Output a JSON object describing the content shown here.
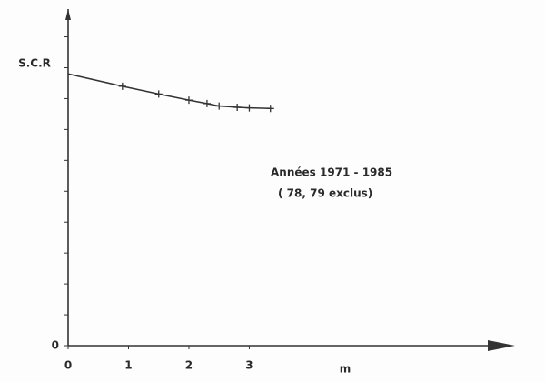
{
  "chart_data": {
    "type": "line",
    "y_label": "S.C.R",
    "x_label": "m",
    "annotations": [
      "Années 1971 - 1985",
      "( 78, 79 exclus)"
    ],
    "x": [
      0,
      0.9,
      1.5,
      2,
      2.3,
      2.5,
      2.8,
      3,
      3.35
    ],
    "series": [
      {
        "color": "#333333",
        "values": [
          8.8,
          8.4,
          8.15,
          7.95,
          7.84,
          7.76,
          7.72,
          7.7,
          7.68
        ]
      }
    ],
    "xlim": [
      0,
      7.4
    ],
    "xticks": [
      0,
      1,
      2,
      3
    ],
    "ylim": [
      0,
      10.9
    ],
    "yticks": [
      0
    ],
    "minor_yticks": [
      1,
      2,
      3,
      4,
      5,
      6,
      7,
      8,
      9,
      10
    ]
  }
}
